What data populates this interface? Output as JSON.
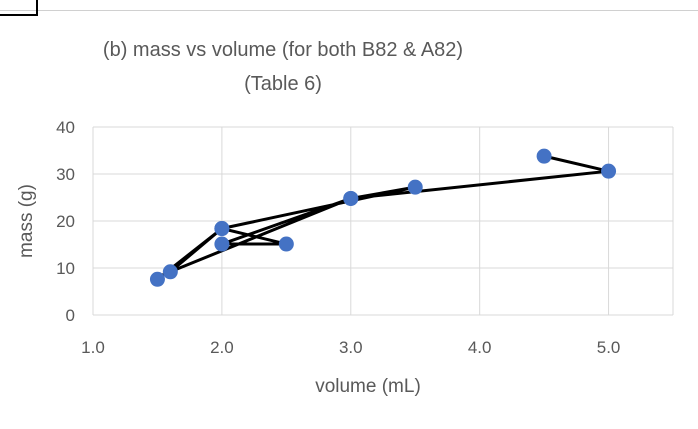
{
  "chart_data": {
    "type": "scatter",
    "title_lines": [
      "(b) mass vs volume (for both B82 & A82)",
      "(Table 6)"
    ],
    "xlabel": "volume (mL)",
    "ylabel": "mass (g)",
    "xlim": [
      1.0,
      5.5
    ],
    "ylim": [
      0,
      40
    ],
    "x_ticks": [
      "1.0",
      "2.0",
      "3.0",
      "4.0",
      "5.0"
    ],
    "y_ticks": [
      "0",
      "10",
      "20",
      "30",
      "40"
    ],
    "grid": true,
    "series": [
      {
        "x": [
          4.5,
          5.0,
          3.0,
          3.5,
          2.0,
          2.5,
          2.0,
          3.0,
          1.6,
          2.0,
          1.5
        ],
        "y": [
          33.8,
          30.6,
          24.8,
          27.2,
          18.4,
          15.1,
          15.1,
          24.8,
          9.2,
          18.4,
          7.6
        ],
        "line_color": "#000000",
        "marker_color": "#4472c4"
      }
    ]
  }
}
